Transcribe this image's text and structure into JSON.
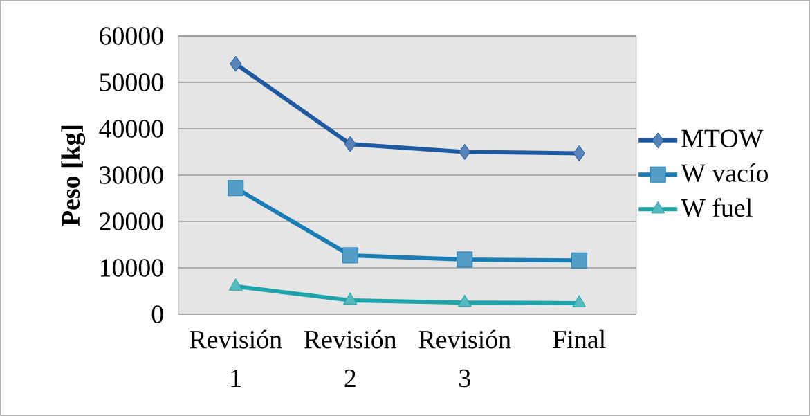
{
  "chart_data": {
    "type": "line",
    "ylabel": "Peso [kg]",
    "categories": [
      "Revisión 1",
      "Revisión 2",
      "Revisión 3",
      "Final"
    ],
    "series": [
      {
        "name": "MTOW",
        "color": "#1f5aa0",
        "marker": "diamond",
        "values": [
          54000,
          36700,
          35000,
          34700
        ]
      },
      {
        "name": "W vacío",
        "color": "#1a7db5",
        "marker": "square",
        "values": [
          27200,
          12700,
          11800,
          11600
        ]
      },
      {
        "name": "W fuel",
        "color": "#1fa3aa",
        "marker": "triangle",
        "values": [
          6000,
          3000,
          2500,
          2400
        ]
      }
    ],
    "ylim": [
      0,
      60000
    ],
    "yticks": [
      0,
      10000,
      20000,
      30000,
      40000,
      50000,
      60000
    ],
    "grid": "y",
    "legend": "right"
  }
}
